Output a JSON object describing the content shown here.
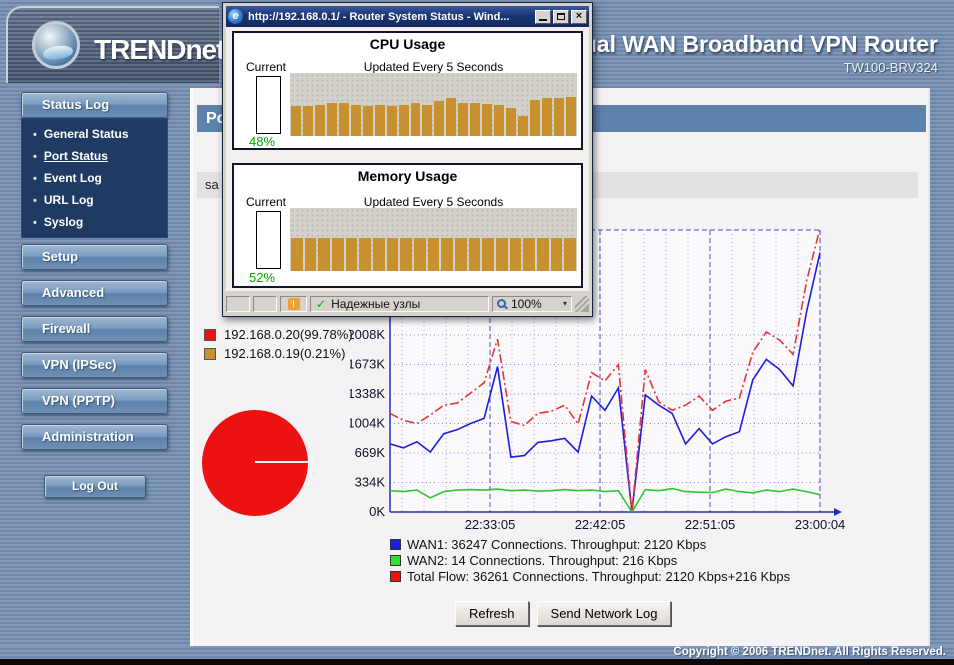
{
  "header": {
    "brand": "TRENDnet",
    "product_title": "Dual WAN Broadband VPN Router",
    "model": "TW100-BRV324"
  },
  "popup_window": {
    "title": "http://192.168.0.1/ - Router System Status - Wind...",
    "close_glyph": "×",
    "cpu": {
      "title": "CPU Usage",
      "current_label": "Current",
      "updated_label": "Updated Every 5 Seconds",
      "current_value": "48%"
    },
    "memory": {
      "title": "Memory Usage",
      "current_label": "Current",
      "updated_label": "Updated Every 5 Seconds",
      "current_value": "52%"
    },
    "status_bar": {
      "zone_label": "Надежные узлы",
      "zoom_value": "100%",
      "check_glyph": "✓",
      "warn_glyph": "!",
      "caret_glyph": "▾"
    }
  },
  "sidebar": {
    "status_log_button": "Status Log",
    "nav_items": [
      {
        "label": "General Status",
        "active": false
      },
      {
        "label": "Port Status",
        "active": true
      },
      {
        "label": "Event Log",
        "active": false
      },
      {
        "label": "URL Log",
        "active": false
      },
      {
        "label": "Syslog",
        "active": false
      }
    ],
    "menu_buttons": [
      "Setup",
      "Advanced",
      "Firewall",
      "VPN (IPSec)",
      "VPN (PPTP)",
      "Administration"
    ],
    "logout_button": "Log Out",
    "bullet": "•"
  },
  "main": {
    "page_title": "Port Status",
    "band_partial_text": "sa",
    "ip_legend": [
      {
        "label": "192.168.0.20(99.78%)",
        "color": "#ec1212"
      },
      {
        "label": "192.168.0.19(0.21%)",
        "color": "#c8912d"
      }
    ],
    "wan_summary": [
      {
        "color": "#1d1dde",
        "text": "WAN1: 36247 Connections. Throughput: 2120 Kbps"
      },
      {
        "color": "#2ee22e",
        "text": "WAN2: 14 Connections. Throughput: 216 Kbps"
      },
      {
        "color": "#ec1212",
        "text": "Total Flow: 36261 Connections. Throughput: 2120 Kbps+216 Kbps"
      }
    ],
    "buttons": {
      "refresh": "Refresh",
      "send_log": "Send Network Log"
    }
  },
  "footer": {
    "copyright": "Copyright © 2006 TRENDnet. All Rights Reserved."
  },
  "chart_data": [
    {
      "id": "cpu_history",
      "type": "bar",
      "title": "CPU Usage",
      "unit": "%",
      "ylim": [
        0,
        100
      ],
      "bar_color": "#c8912d",
      "values": [
        48,
        47,
        50,
        53,
        53,
        49,
        47,
        49,
        47,
        49,
        53,
        49,
        55,
        60,
        53,
        53,
        51,
        49,
        45,
        32,
        57,
        60,
        60,
        62
      ]
    },
    {
      "id": "memory_history",
      "type": "bar",
      "title": "Memory Usage",
      "unit": "%",
      "ylim": [
        0,
        100
      ],
      "bar_color": "#c8912d",
      "values": [
        52,
        52,
        52,
        52,
        52,
        52,
        52,
        52,
        52,
        52,
        52,
        52,
        52,
        52,
        52,
        52,
        52,
        52,
        52,
        52,
        52
      ]
    },
    {
      "id": "traffic",
      "type": "line",
      "ylim": [
        0,
        2008
      ],
      "plot_max_k": 3290,
      "grid": true,
      "ytick_step_k": 334.667,
      "yticks": [
        "0K",
        "334K",
        "669K",
        "1004K",
        "1338K",
        "1673K",
        "2008K"
      ],
      "xticks": [
        {
          "label": "22:33:05",
          "f": 0.2326
        },
        {
          "label": "22:42:05",
          "f": 0.4884
        },
        {
          "label": "22:51:05",
          "f": 0.7442
        },
        {
          "label": "23:00:04",
          "f": 1.0
        }
      ],
      "series": [
        {
          "name": "WAN1",
          "color": "#1d1dde",
          "dash": "solid",
          "values": [
            773,
            727,
            796,
            681,
            888,
            935,
            1004,
            1062,
            1650,
            623,
            640,
            790,
            808,
            835,
            680,
            1315,
            1154,
            1408,
            0,
            1327,
            1212,
            1119,
            773,
            946,
            773,
            854,
            911,
            1500,
            1731,
            1615,
            1431,
            2273,
            2943
          ]
        },
        {
          "name": "WAN2",
          "color": "#2ec82e",
          "dash": "solid",
          "values": [
            242,
            231,
            248,
            161,
            231,
            248,
            254,
            248,
            260,
            242,
            248,
            237,
            242,
            254,
            242,
            248,
            231,
            242,
            0,
            254,
            242,
            265,
            231,
            225,
            220,
            260,
            231,
            217,
            248,
            231,
            260,
            231,
            196
          ]
        },
        {
          "name": "Total Flow",
          "color": "#e83535",
          "dash": "dashdot",
          "values": [
            1119,
            1039,
            1004,
            1100,
            1212,
            1235,
            1350,
            1466,
            1962,
            1027,
            981,
            1119,
            1143,
            1212,
            1000,
            1581,
            1488,
            1673,
            0,
            1615,
            1250,
            1154,
            1212,
            1315,
            1154,
            1258,
            1292,
            1812,
            2043,
            1950,
            1789,
            2620,
            3220
          ]
        }
      ]
    },
    {
      "id": "ip_share",
      "type": "pie",
      "slices": [
        {
          "label": "192.168.0.20",
          "value": 99.78,
          "color": "#ec1212"
        },
        {
          "label": "192.168.0.19",
          "value": 0.21,
          "color": "#c8912d"
        }
      ]
    }
  ]
}
